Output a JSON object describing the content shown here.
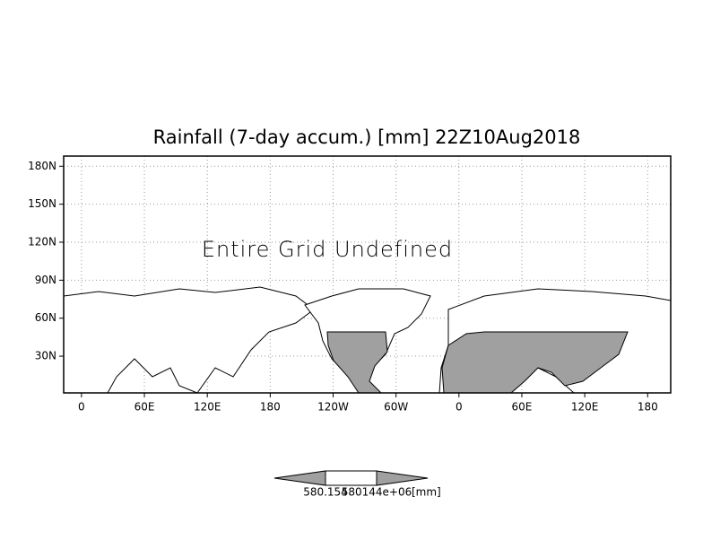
{
  "chart_data": {
    "type": "map",
    "title": "Rainfall (7-day accum.) [mm] 22Z10Aug2018",
    "annotation": "Entire Grid Undefined",
    "xlim": [
      -17,
      562
    ],
    "ylim": [
      1,
      188
    ],
    "xticks": [
      0,
      {
        "value": 60,
        "label": "60E"
      },
      {
        "value": 120,
        "label": "120E"
      },
      180,
      {
        "value": 240,
        "label": "120W"
      },
      {
        "value": 300,
        "label": "60W"
      },
      {
        "value": 360,
        "label": "0"
      },
      {
        "value": 420,
        "label": "60E"
      },
      {
        "value": 480,
        "label": "120E"
      },
      {
        "value": 540,
        "label": "180"
      }
    ],
    "yticks": [
      {
        "value": 30,
        "label": "30N"
      },
      {
        "value": 60,
        "label": "60N"
      },
      {
        "value": 90,
        "label": "90N"
      },
      {
        "value": 120,
        "label": "120N"
      },
      {
        "value": 150,
        "label": "150N"
      },
      {
        "value": 180,
        "label": "180N"
      }
    ],
    "grid": true,
    "colorbar": {
      "labels": [
        "580.154",
        "580144e+06"
      ],
      "unit": "[mm]"
    }
  }
}
